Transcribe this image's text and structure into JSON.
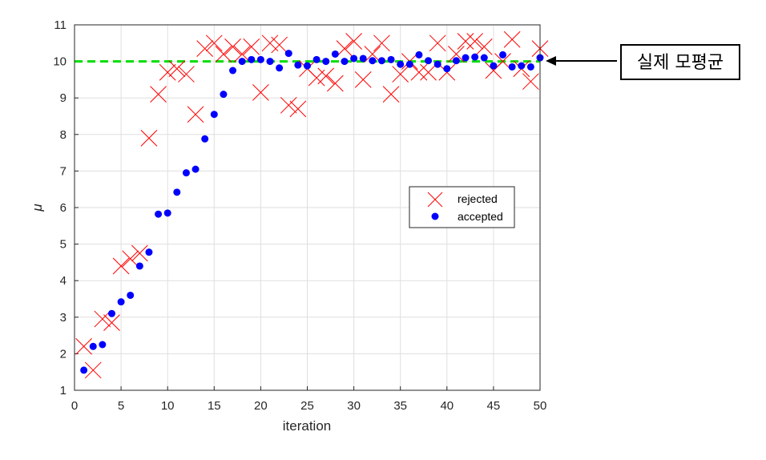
{
  "chart_data": {
    "type": "scatter",
    "xlabel": "iteration",
    "ylabel": "μ",
    "xlim": [
      0,
      50
    ],
    "ylim": [
      1,
      11
    ],
    "xticks": [
      0,
      5,
      10,
      15,
      20,
      25,
      30,
      35,
      40,
      45,
      50
    ],
    "yticks": [
      1,
      2,
      3,
      4,
      5,
      6,
      7,
      8,
      9,
      10,
      11
    ],
    "grid": true,
    "legend_position": "right",
    "series": [
      {
        "name": "rejected",
        "marker": "x",
        "color": "#ff0000",
        "points": [
          [
            1,
            2.2
          ],
          [
            2,
            1.55
          ],
          [
            3,
            2.95
          ],
          [
            4,
            2.85
          ],
          [
            5,
            4.4
          ],
          [
            6,
            4.6
          ],
          [
            7,
            4.75
          ],
          [
            8,
            7.9
          ],
          [
            9,
            9.1
          ],
          [
            10,
            9.7
          ],
          [
            11,
            9.8
          ],
          [
            12,
            9.65
          ],
          [
            13,
            8.55
          ],
          [
            14,
            10.35
          ],
          [
            15,
            10.5
          ],
          [
            16,
            10.2
          ],
          [
            17,
            10.4
          ],
          [
            18,
            10.2
          ],
          [
            19,
            10.4
          ],
          [
            20,
            9.15
          ],
          [
            21,
            10.5
          ],
          [
            22,
            10.45
          ],
          [
            23,
            8.8
          ],
          [
            24,
            8.7
          ],
          [
            25,
            9.8
          ],
          [
            26,
            9.55
          ],
          [
            27,
            9.6
          ],
          [
            28,
            9.4
          ],
          [
            29,
            10.35
          ],
          [
            30,
            10.55
          ],
          [
            31,
            9.5
          ],
          [
            32,
            10.2
          ],
          [
            33,
            10.5
          ],
          [
            34,
            9.1
          ],
          [
            35,
            9.65
          ],
          [
            36,
            10.0
          ],
          [
            37,
            9.7
          ],
          [
            38,
            9.7
          ],
          [
            39,
            10.5
          ],
          [
            40,
            9.7
          ],
          [
            41,
            10.2
          ],
          [
            42,
            10.55
          ],
          [
            43,
            10.55
          ],
          [
            44,
            10.4
          ],
          [
            45,
            9.75
          ],
          [
            46,
            10.0
          ],
          [
            47,
            10.6
          ],
          [
            48,
            9.8
          ],
          [
            49,
            9.45
          ],
          [
            50,
            10.35
          ]
        ]
      },
      {
        "name": "accepted",
        "marker": "o",
        "color": "#0000ff",
        "points": [
          [
            1,
            1.55
          ],
          [
            2,
            2.2
          ],
          [
            3,
            2.25
          ],
          [
            4,
            3.1
          ],
          [
            5,
            3.42
          ],
          [
            6,
            3.6
          ],
          [
            7,
            4.4
          ],
          [
            8,
            4.78
          ],
          [
            9,
            5.82
          ],
          [
            10,
            5.85
          ],
          [
            11,
            6.42
          ],
          [
            12,
            6.95
          ],
          [
            13,
            7.05
          ],
          [
            14,
            7.88
          ],
          [
            15,
            8.55
          ],
          [
            16,
            9.1
          ],
          [
            17,
            9.75
          ],
          [
            18,
            10.0
          ],
          [
            19,
            10.05
          ],
          [
            20,
            10.05
          ],
          [
            21,
            10.0
          ],
          [
            22,
            9.82
          ],
          [
            23,
            10.22
          ],
          [
            24,
            9.9
          ],
          [
            25,
            9.88
          ],
          [
            26,
            10.05
          ],
          [
            27,
            10.0
          ],
          [
            28,
            10.2
          ],
          [
            29,
            10.0
          ],
          [
            30,
            10.08
          ],
          [
            31,
            10.08
          ],
          [
            32,
            10.02
          ],
          [
            33,
            10.02
          ],
          [
            34,
            10.05
          ],
          [
            35,
            9.92
          ],
          [
            36,
            9.92
          ],
          [
            37,
            10.18
          ],
          [
            38,
            10.02
          ],
          [
            39,
            9.92
          ],
          [
            40,
            9.8
          ],
          [
            41,
            10.02
          ],
          [
            42,
            10.1
          ],
          [
            43,
            10.12
          ],
          [
            44,
            10.1
          ],
          [
            45,
            9.88
          ],
          [
            46,
            10.18
          ],
          [
            47,
            9.85
          ],
          [
            48,
            9.88
          ],
          [
            49,
            9.85
          ],
          [
            50,
            10.1
          ]
        ]
      }
    ],
    "reference_line": {
      "y": 10,
      "style": "dashed",
      "color": "#00dd00"
    },
    "annotation": {
      "text": "실제 모평균",
      "arrow_target": [
        50,
        10
      ]
    }
  }
}
